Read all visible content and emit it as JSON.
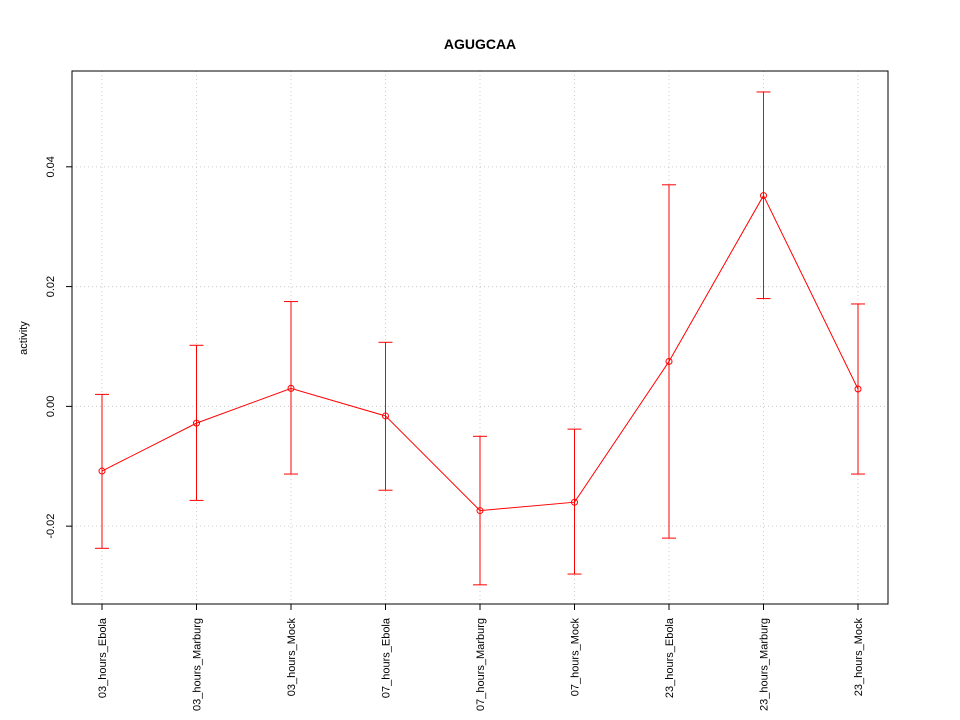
{
  "chart_data": {
    "type": "line",
    "title": "AGUGCAA",
    "xlabel": "",
    "ylabel": "activity",
    "categories": [
      "03_hours_Ebola",
      "03_hours_Marburg",
      "03_hours_Mock",
      "07_hours_Ebola",
      "07_hours_Marburg",
      "07_hours_Mock",
      "23_hours_Ebola",
      "23_hours_Marburg",
      "23_hours_Mock"
    ],
    "values": [
      -0.0108,
      -0.0028,
      0.003,
      -0.0016,
      -0.0174,
      -0.016,
      0.0075,
      0.0352,
      0.0029
    ],
    "error_lower": [
      -0.0237,
      -0.0157,
      -0.0113,
      -0.014,
      -0.0298,
      -0.028,
      -0.022,
      0.018,
      -0.0113
    ],
    "error_upper": [
      0.002,
      0.0102,
      0.0175,
      0.0107,
      -0.005,
      -0.0038,
      0.037,
      0.0525,
      0.0171
    ],
    "yticks": [
      -0.02,
      0.0,
      0.02,
      0.04
    ],
    "ytick_labels": [
      "-0.02",
      "0.00",
      "0.02",
      "0.04"
    ],
    "ylim": [
      -0.033,
      0.056
    ],
    "grid": true,
    "color": "#ff0000",
    "grid_color": "#cccccc",
    "axis_color": "#000000"
  }
}
